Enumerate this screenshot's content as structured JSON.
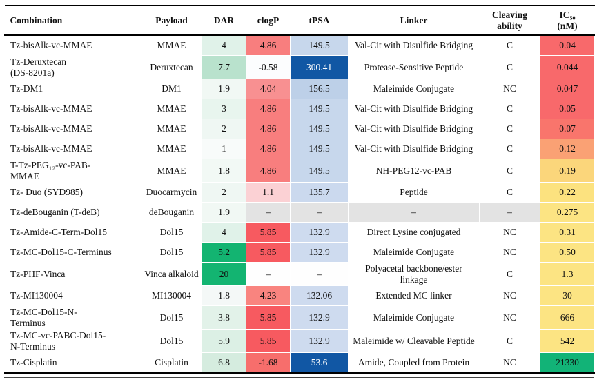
{
  "table": {
    "columns": [
      {
        "key": "combination",
        "label": "Combination"
      },
      {
        "key": "payload",
        "label": "Payload"
      },
      {
        "key": "dar",
        "label": "DAR"
      },
      {
        "key": "clogp",
        "label": "clogP"
      },
      {
        "key": "tpsa",
        "label": "tPSA"
      },
      {
        "key": "linker",
        "label": "Linker"
      },
      {
        "key": "cleaving",
        "label": "Cleaving\nability"
      },
      {
        "key": "ic50",
        "label": "IC₅₀\n(nM)"
      }
    ],
    "rows": [
      {
        "combination": "Tz-bisAlk-vc-MMAE",
        "payload": "MMAE",
        "dar": {
          "v": "4",
          "bg": "#e0f2e9"
        },
        "clogp": {
          "v": "4.86",
          "bg": "#f87e7e"
        },
        "tpsa": {
          "v": "149.5",
          "bg": "#c7d7ec"
        },
        "linker": "Val-Cit with Disulfide Bridging",
        "cleaving": "C",
        "ic50": {
          "v": "0.04",
          "bg": "#f8696b"
        }
      },
      {
        "combination": "Tz-Deruxtecan\n(DS-8201a)",
        "payload": "Deruxtecan",
        "dar": {
          "v": "7.7",
          "bg": "#b9e2cd"
        },
        "clogp": {
          "v": "-0.58",
          "bg": "#fcfdfe"
        },
        "tpsa": {
          "v": "300.41",
          "bg": "#1157a4",
          "fg": "#ffffff"
        },
        "linker": "Protease-Sensitive Peptide",
        "cleaving": "C",
        "ic50": {
          "v": "0.044",
          "bg": "#f8696b"
        }
      },
      {
        "combination": "Tz-DM1",
        "payload": "DM1",
        "dar": {
          "v": "1.9",
          "bg": "#f1f8f4"
        },
        "clogp": {
          "v": "4.04",
          "bg": "#f89091"
        },
        "tpsa": {
          "v": "156.5",
          "bg": "#bdd0e8"
        },
        "linker": "Maleimide Conjugate",
        "cleaving": "NC",
        "ic50": {
          "v": "0.047",
          "bg": "#f8696b"
        }
      },
      {
        "combination": "Tz-bisAlk-vc-MMAE",
        "payload": "MMAE",
        "dar": {
          "v": "3",
          "bg": "#e8f5ee"
        },
        "clogp": {
          "v": "4.86",
          "bg": "#f87e7e"
        },
        "tpsa": {
          "v": "149.5",
          "bg": "#c7d7ec"
        },
        "linker": "Val-Cit with Disulfide Bridging",
        "cleaving": "C",
        "ic50": {
          "v": "0.05",
          "bg": "#f8696b"
        }
      },
      {
        "combination": "Tz-bisAlk-vc-MMAE",
        "payload": "MMAE",
        "dar": {
          "v": "2",
          "bg": "#eff7f3"
        },
        "clogp": {
          "v": "4.86",
          "bg": "#f87e7e"
        },
        "tpsa": {
          "v": "149.5",
          "bg": "#c7d7ec"
        },
        "linker": "Val-Cit with Disulfide Bridging",
        "cleaving": "C",
        "ic50": {
          "v": "0.07",
          "bg": "#f9756c"
        }
      },
      {
        "combination": "Tz-bisAlk-vc-MMAE",
        "payload": "MMAE",
        "dar": {
          "v": "1",
          "bg": "#f8fbfa"
        },
        "clogp": {
          "v": "4.86",
          "bg": "#f87e7e"
        },
        "tpsa": {
          "v": "149.5",
          "bg": "#c7d7ec"
        },
        "linker": "Val-Cit with Disulfide Bridging",
        "cleaving": "C",
        "ic50": {
          "v": "0.12",
          "bg": "#faa174"
        }
      },
      {
        "combination": "T-Tz-PEG₁₂-vc-PAB-\nMMAE",
        "payload": "MMAE",
        "dar": {
          "v": "1.8",
          "bg": "#f2f9f5"
        },
        "clogp": {
          "v": "4.86",
          "bg": "#f87e7e"
        },
        "tpsa": {
          "v": "149.5",
          "bg": "#c7d7ec"
        },
        "linker": "NH-PEG12-vc-PAB",
        "cleaving": "C",
        "ic50": {
          "v": "0.19",
          "bg": "#fbd67b"
        }
      },
      {
        "combination": "Tz- Duo (SYD985)",
        "payload": "Duocarmycin",
        "dar": {
          "v": "2",
          "bg": "#eff7f3"
        },
        "clogp": {
          "v": "1.1",
          "bg": "#fbd1d4"
        },
        "tpsa": {
          "v": "135.7",
          "bg": "#cbd9ee"
        },
        "linker": "Peptide",
        "cleaving": "C",
        "ic50": {
          "v": "0.22",
          "bg": "#fce27f"
        }
      },
      {
        "combination": "Tz-deBouganin (T-deB)",
        "payload": "deBouganin",
        "dar": {
          "v": "1.9",
          "bg": "#f1f8f4"
        },
        "clogp": {
          "v": "–",
          "bg": "#e3e3e3"
        },
        "tpsa": {
          "v": "–",
          "bg": "#e3e3e3"
        },
        "linker": {
          "v": "–",
          "bg": "#e3e3e3"
        },
        "cleaving": {
          "v": "–",
          "bg": "#e3e3e3"
        },
        "ic50": {
          "v": "0.275",
          "bg": "#fce483"
        }
      },
      {
        "combination": "Tz-Amide-C-Term-Dol15",
        "payload": "Dol15",
        "dar": {
          "v": "4",
          "bg": "#e0f2e9"
        },
        "clogp": {
          "v": "5.85",
          "bg": "#f75a60"
        },
        "tpsa": {
          "v": "132.9",
          "bg": "#cedbef"
        },
        "linker": "Direct Lysine conjugated",
        "cleaving": "NC",
        "ic50": {
          "v": "0.31",
          "bg": "#fce483"
        }
      },
      {
        "combination": "Tz-MC-Dol15-C-Terminus",
        "payload": "Dol15",
        "dar": {
          "v": "5.2",
          "bg": "#13b471"
        },
        "clogp": {
          "v": "5.85",
          "bg": "#f75a60"
        },
        "tpsa": {
          "v": "132.9",
          "bg": "#cedbef"
        },
        "linker": "Maleimide Conjugate",
        "cleaving": "NC",
        "ic50": {
          "v": "0.50",
          "bg": "#fce483"
        }
      },
      {
        "combination": "Tz-PHF-Vinca",
        "payload": "Vinca alkaloid",
        "dar": {
          "v": "20",
          "bg": "#13b471"
        },
        "clogp": {
          "v": "–",
          "bg": "#fefefe"
        },
        "tpsa": {
          "v": "–",
          "bg": "#fefefe"
        },
        "linker": "Polyacetal backbone/ester\nlinkage",
        "cleaving": "C",
        "ic50": {
          "v": "1.3",
          "bg": "#fce483"
        }
      },
      {
        "combination": "Tz-MI130004",
        "payload": "MI130004",
        "dar": {
          "v": "1.8",
          "bg": "#f4f8f7"
        },
        "clogp": {
          "v": "4.23",
          "bg": "#f9847f"
        },
        "tpsa": {
          "v": "132.06",
          "bg": "#cedbef"
        },
        "linker": "Extended MC linker",
        "cleaving": "NC",
        "ic50": {
          "v": "30",
          "bg": "#fce483"
        }
      },
      {
        "combination": "Tz-MC-Dol15-N-\nTerminus",
        "payload": "Dol15",
        "dar": {
          "v": "3.8",
          "bg": "#e2f2e9"
        },
        "clogp": {
          "v": "5.85",
          "bg": "#f75a60"
        },
        "tpsa": {
          "v": "132.9",
          "bg": "#cedbef"
        },
        "linker": "Maleimide Conjugate",
        "cleaving": "NC",
        "ic50": {
          "v": "666",
          "bg": "#fce483"
        }
      },
      {
        "combination": "Tz-MC-vc-PABC-Dol15-\nN-Terminus",
        "payload": "Dol15",
        "dar": {
          "v": "5.9",
          "bg": "#dcf0e5"
        },
        "clogp": {
          "v": "5.85",
          "bg": "#f75a60"
        },
        "tpsa": {
          "v": "132.9",
          "bg": "#cedbef"
        },
        "linker": "Maleimide w/ Cleavable Peptide",
        "cleaving": "C",
        "ic50": {
          "v": "542",
          "bg": "#fce483"
        }
      },
      {
        "combination": "Tz-Cisplatin",
        "payload": "Cisplatin",
        "dar": {
          "v": "6.8",
          "bg": "#d5ecdf"
        },
        "clogp": {
          "v": "-1.68",
          "bg": "#f76e6c"
        },
        "tpsa": {
          "v": "53.6",
          "bg": "#1157a4",
          "fg": "#ffffff"
        },
        "linker": "Amide, Coupled from Protein",
        "cleaving": "NC",
        "ic50": {
          "v": "21330",
          "bg": "#12b377"
        }
      }
    ]
  }
}
